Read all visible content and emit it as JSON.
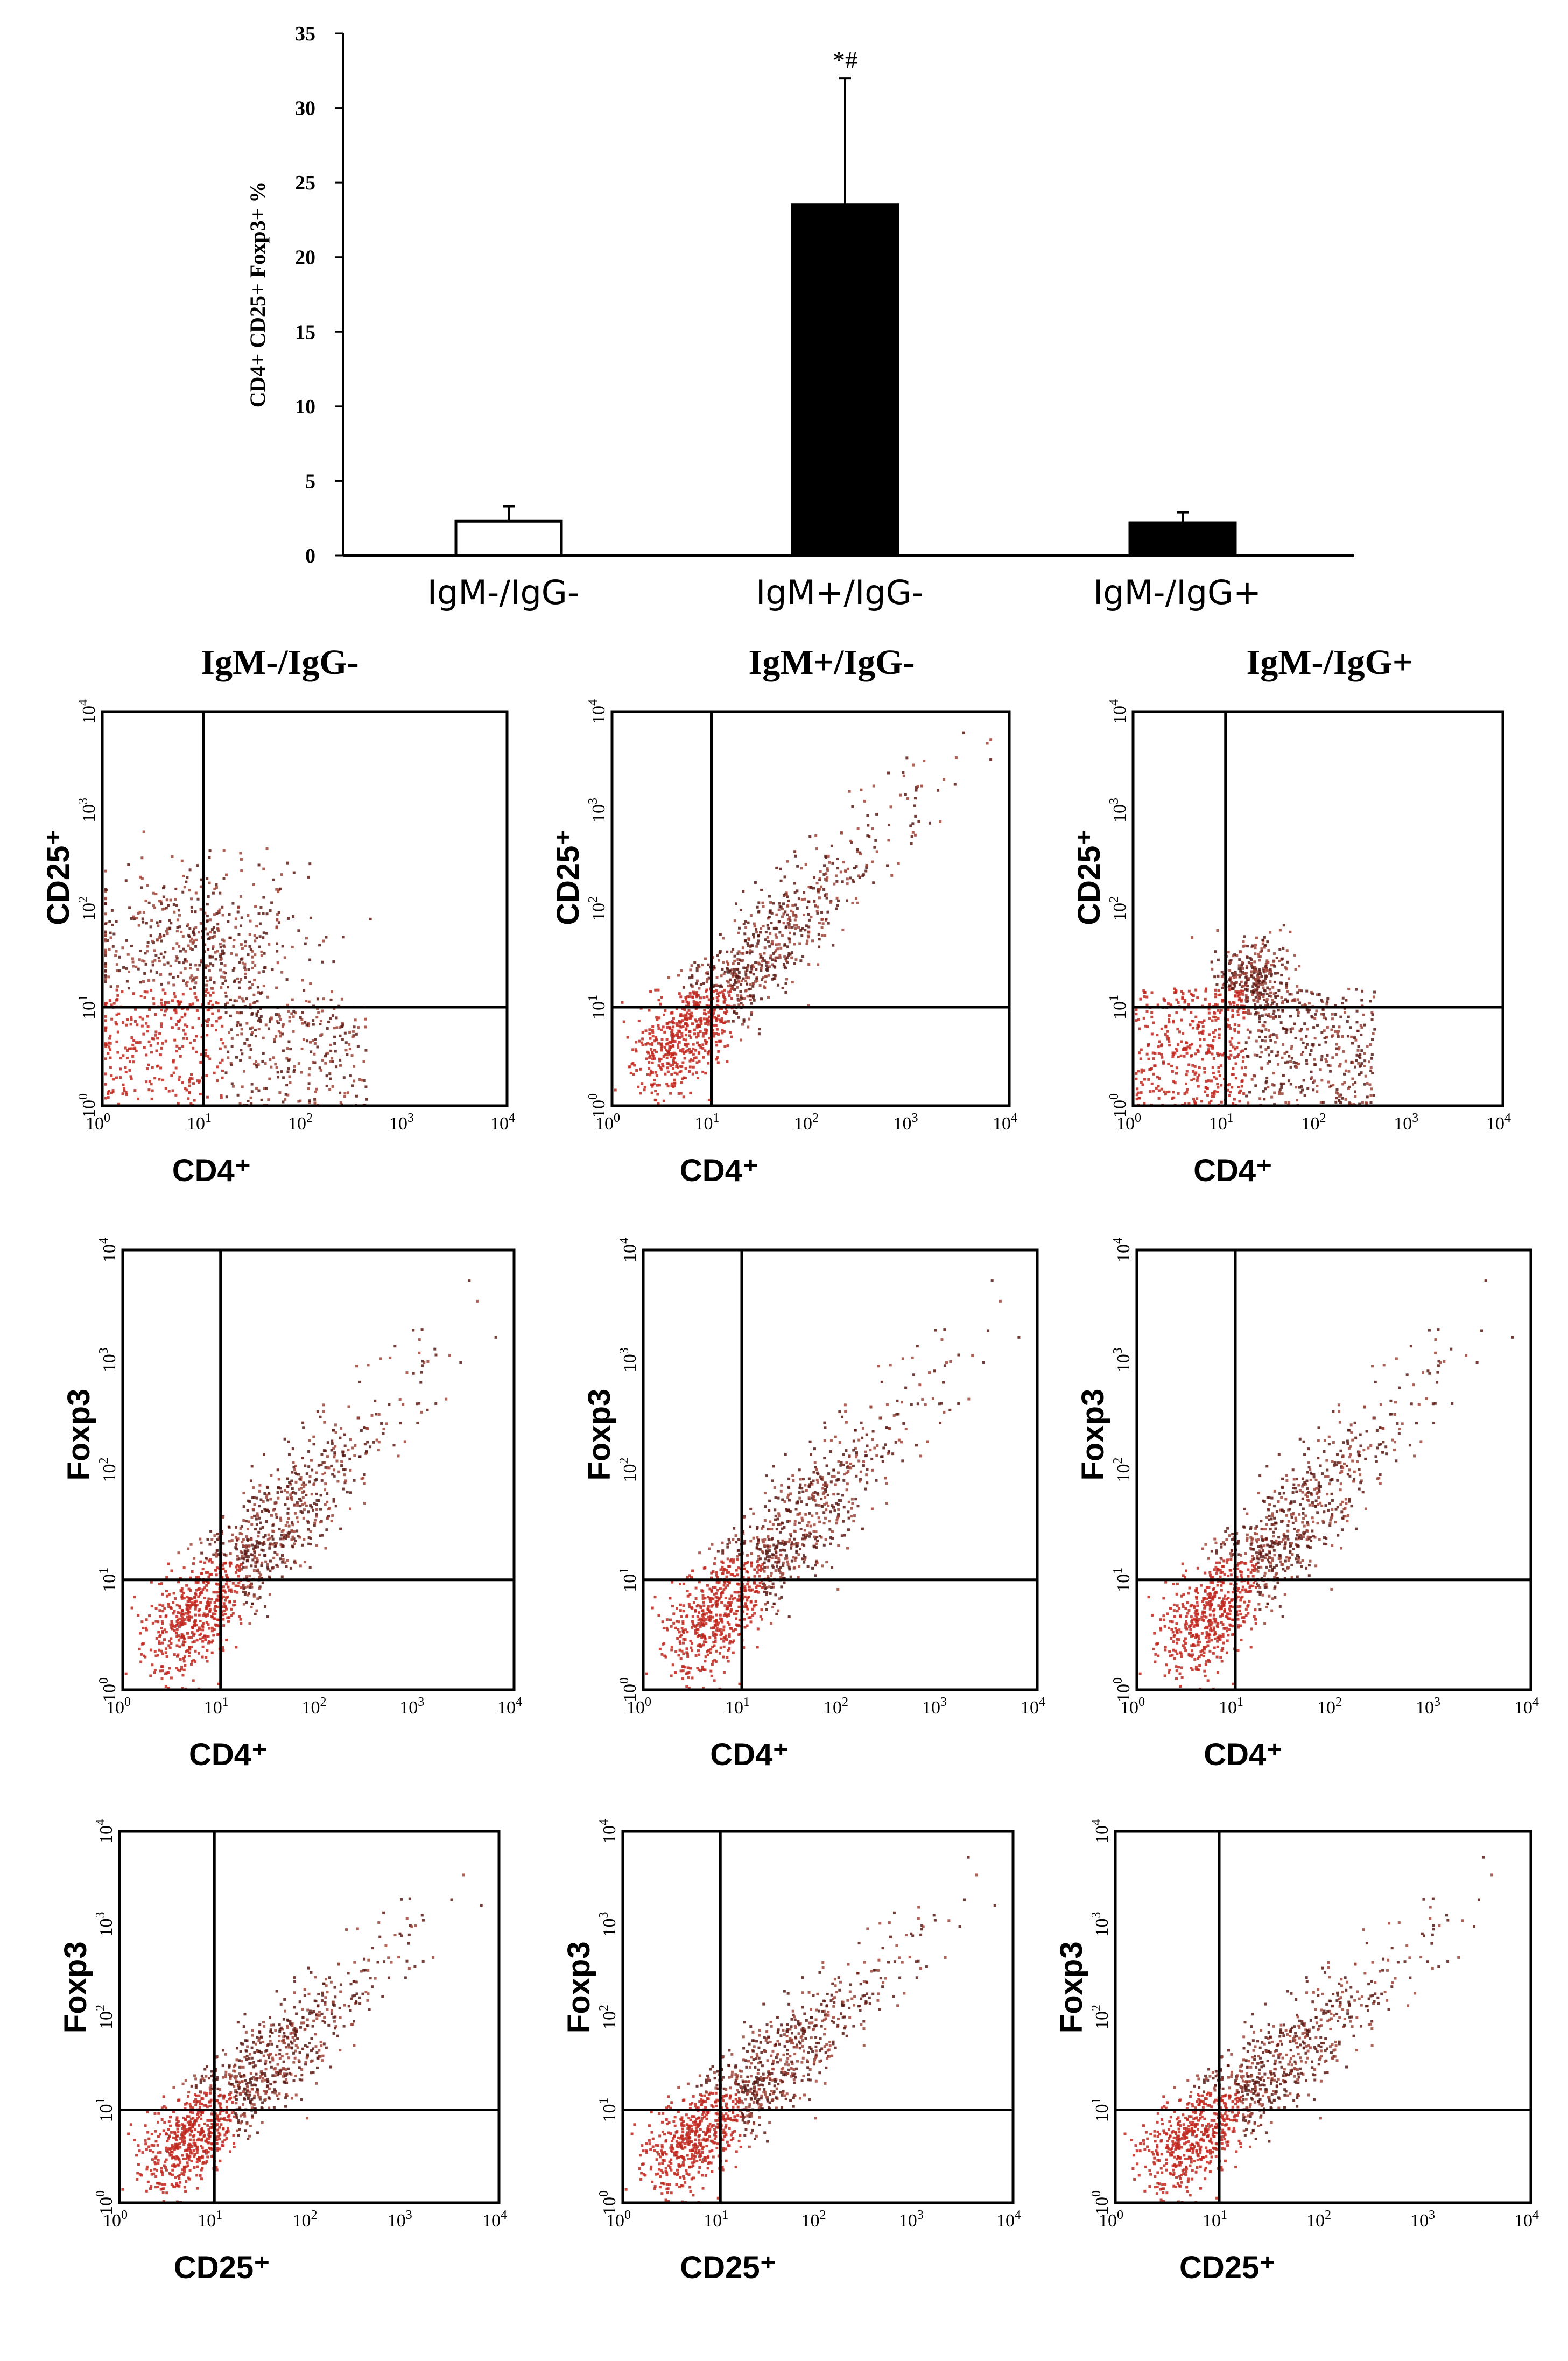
{
  "chart_data": [
    {
      "type": "bar",
      "title": "",
      "xlabel": "",
      "ylabel": "CD4+ CD25+ Foxp3+ %",
      "ylim": [
        0,
        35
      ],
      "yticks": [
        0,
        5,
        10,
        15,
        20,
        25,
        30,
        35
      ],
      "categories": [
        "IgM-/IgG-",
        "IgM+/IgG-",
        "IgM-/IgG+"
      ],
      "values": [
        2.3,
        23.5,
        2.2
      ],
      "errors": [
        1.0,
        8.5,
        0.7
      ],
      "fill_colors": [
        "#ffffff",
        "#000000",
        "#000000"
      ],
      "annotations": [
        {
          "category": "IgM+/IgG-",
          "text": "*#"
        }
      ]
    },
    {
      "type": "scatter",
      "description_free": true,
      "column_titles": [
        "IgM-/IgG-",
        "IgM+/IgG-",
        "IgM-/IgG+"
      ],
      "axis_ticks": [
        "10^0",
        "10^1",
        "10^2",
        "10^3",
        "10^4"
      ],
      "tick_base": "10",
      "tick_exponents": [
        "0",
        "1",
        "2",
        "3",
        "4"
      ],
      "dot_color": "#c0281e",
      "rows": [
        {
          "xlabel": "CD4⁺",
          "ylabel": "CD25⁺"
        },
        {
          "xlabel": "CD4⁺",
          "ylabel": "Foxp3"
        },
        {
          "xlabel": "CD25⁺",
          "ylabel": "Foxp3"
        }
      ]
    }
  ]
}
